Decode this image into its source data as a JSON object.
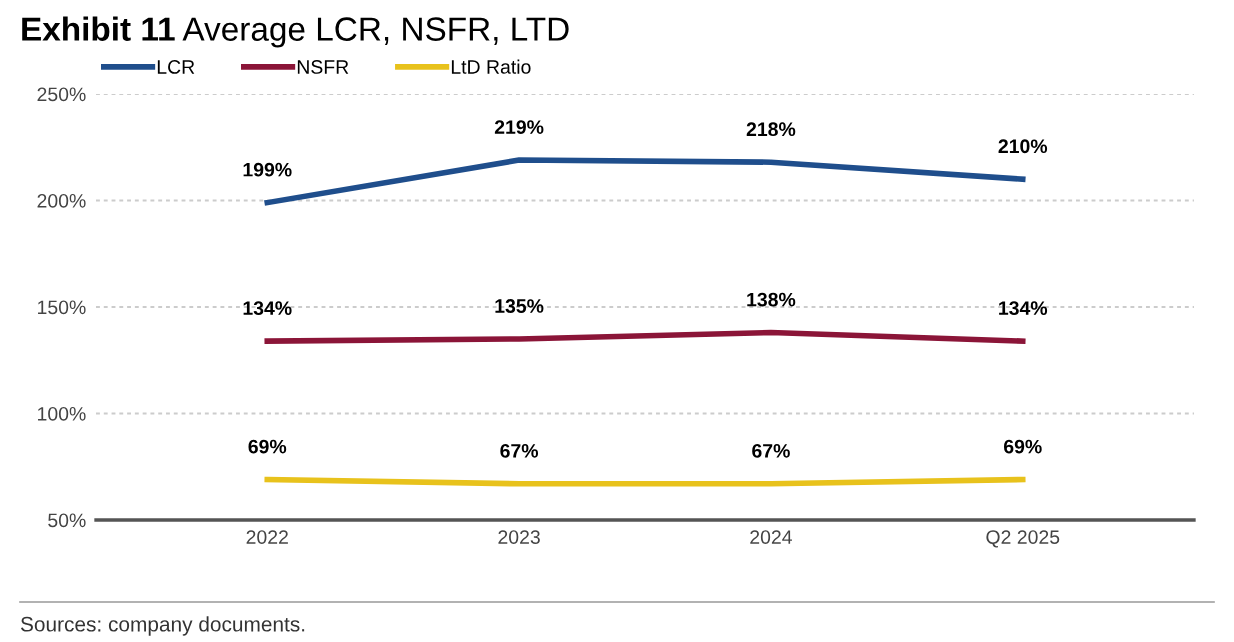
{
  "chart_data": {
    "type": "line",
    "title": "Exhibit 11",
    "subtitle": "Average LCR, NSFR, LTD",
    "categories": [
      "2022",
      "2023",
      "2024",
      "Q2 2025"
    ],
    "series": [
      {
        "name": "LCR",
        "color": "#1f4e8c",
        "values": [
          199,
          219,
          218,
          210
        ],
        "value_labels": [
          "199%",
          "219%",
          "218%",
          "210%"
        ]
      },
      {
        "name": "NSFR",
        "color": "#8b1538",
        "values": [
          134,
          135,
          138,
          134
        ],
        "value_labels": [
          "134%",
          "135%",
          "138%",
          "134%"
        ]
      },
      {
        "name": "LtD Ratio",
        "color": "#e8c21c",
        "values": [
          69,
          67,
          67,
          69
        ],
        "value_labels": [
          "69%",
          "67%",
          "67%",
          "69%"
        ]
      }
    ],
    "ylim": [
      50,
      250
    ],
    "yticks": [
      {
        "value": 50,
        "label": "50%"
      },
      {
        "value": 100,
        "label": "100%"
      },
      {
        "value": 150,
        "label": "150%"
      },
      {
        "value": 200,
        "label": "200%"
      },
      {
        "value": 250,
        "label": "250%"
      }
    ],
    "grid": "y",
    "legend": "top left",
    "marker": "none",
    "line_style": "solid",
    "annotations": [
      "Sources: company documents."
    ]
  }
}
